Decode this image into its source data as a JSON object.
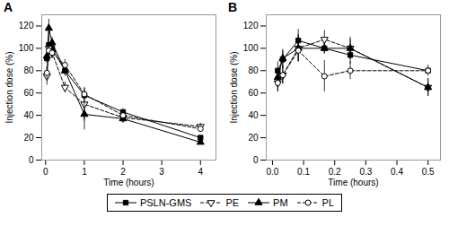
{
  "chart_data": [
    {
      "type": "line",
      "title": "A",
      "x": [
        0.033,
        0.083,
        0.167,
        0.5,
        1.0,
        2.0,
        4.0
      ],
      "series": [
        {
          "name": "PSLN-GMS",
          "color": "black",
          "marker": "filled-square",
          "line_style": "solid",
          "values": [
            91,
            103,
            100,
            80,
            58,
            43,
            20
          ],
          "errors": [
            5,
            7,
            5,
            4,
            4,
            3,
            2
          ]
        },
        {
          "name": "PE",
          "color": "black",
          "marker": "open-triangle-down",
          "line_style": "dashed",
          "values": [
            75,
            100,
            96,
            65,
            50,
            38,
            30
          ],
          "errors": [
            8,
            5,
            5,
            5,
            15,
            4,
            3
          ]
        },
        {
          "name": "PM",
          "color": "black",
          "marker": "filled-triangle-up",
          "line_style": "solid",
          "values": [
            93,
            118,
            105,
            80,
            41,
            37,
            16
          ],
          "errors": [
            5,
            8,
            5,
            5,
            14,
            4,
            2
          ]
        },
        {
          "name": "PL",
          "color": "black",
          "marker": "open-circle",
          "line_style": "dashed",
          "values": [
            78,
            98,
            96,
            85,
            59,
            40,
            28
          ],
          "errors": [
            6,
            5,
            5,
            5,
            5,
            4,
            3
          ]
        }
      ],
      "xlim": [
        -0.1,
        4.4
      ],
      "ylim": [
        0,
        130
      ],
      "xticks": [
        0,
        1,
        2,
        3,
        4
      ],
      "yticks": [
        0,
        20,
        40,
        60,
        80,
        100,
        120
      ],
      "xlabel": "Time (hours)",
      "ylabel": "Injection dose (%)",
      "legend": "bottom"
    },
    {
      "type": "line",
      "title": "B",
      "x": [
        0.017,
        0.033,
        0.083,
        0.167,
        0.25,
        0.5
      ],
      "series": [
        {
          "name": "PSLN-GMS",
          "color": "black",
          "marker": "filled-square",
          "line_style": "solid",
          "values": [
            80,
            90,
            107,
            100,
            94,
            80
          ],
          "errors": [
            8,
            8,
            10,
            5,
            8,
            5
          ]
        },
        {
          "name": "PE",
          "color": "black",
          "marker": "open-triangle-down",
          "line_style": "dashed",
          "values": [
            69,
            76,
            100,
            108,
            100,
            65
          ],
          "errors": [
            8,
            8,
            12,
            8,
            10,
            8
          ]
        },
        {
          "name": "PM",
          "color": "black",
          "marker": "filled-triangle-up",
          "line_style": "solid",
          "values": [
            74,
            91,
            100,
            100,
            100,
            65
          ],
          "errors": [
            8,
            8,
            12,
            5,
            8,
            8
          ]
        },
        {
          "name": "PL",
          "color": "black",
          "marker": "open-circle",
          "line_style": "dashed",
          "values": [
            69,
            76,
            98,
            75,
            80,
            80
          ],
          "errors": [
            8,
            8,
            10,
            14,
            8,
            3
          ]
        }
      ],
      "xlim": [
        -0.02,
        0.54
      ],
      "ylim": [
        0,
        130
      ],
      "xticks": [
        {
          "value": 0,
          "label": "0.0"
        },
        0.1,
        0.2,
        0.3,
        0.4,
        0.5
      ],
      "yticks": [
        0,
        20,
        40,
        60,
        80,
        100,
        120
      ],
      "xlabel": "Time (hours)",
      "ylabel": "Injection dose (%)",
      "legend": "bottom"
    }
  ]
}
